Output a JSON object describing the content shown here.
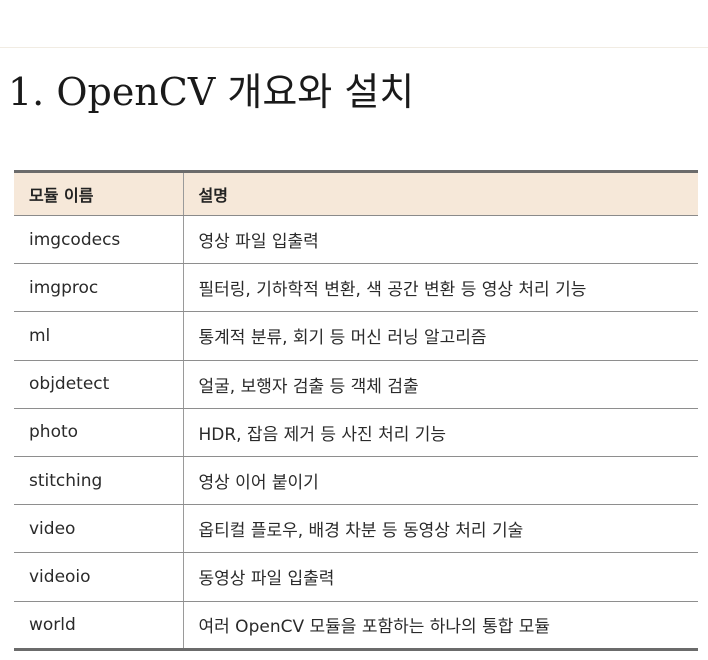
{
  "title": "1. OpenCV 개요와 설치",
  "table": {
    "headers": [
      "모듈 이름",
      "설명"
    ],
    "rows": [
      [
        "imgcodecs",
        "영상 파일 입출력"
      ],
      [
        "imgproc",
        "필터링, 기하학적 변환, 색 공간 변환 등 영상 처리 기능"
      ],
      [
        "ml",
        "통계적 분류, 회기 등 머신 러닝 알고리즘"
      ],
      [
        "objdetect",
        "얼굴, 보행자 검출 등 객체 검출"
      ],
      [
        "photo",
        "HDR, 잡음 제거 등 사진 처리 기능"
      ],
      [
        "stitching",
        "영상 이어 붙이기"
      ],
      [
        "video",
        "옵티컬 플로우, 배경 차분 등 동영상 처리 기술"
      ],
      [
        "videoio",
        "동영상 파일 입출력"
      ],
      [
        "world",
        "여러 OpenCV 모듈을 포함하는 하나의 통합 모듈"
      ]
    ]
  }
}
